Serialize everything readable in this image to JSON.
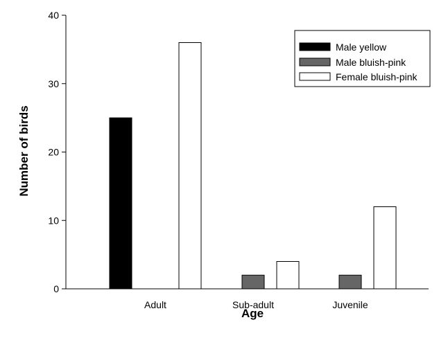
{
  "chart_data": {
    "type": "bar",
    "xlabel": "Age",
    "ylabel": "Number of birds",
    "categories": [
      "Adult",
      "Sub-adult",
      "Juvenile"
    ],
    "ylim": [
      0,
      40
    ],
    "yticks": [
      0,
      10,
      20,
      30,
      40
    ],
    "grid": false,
    "legend_position": "top-right",
    "series": [
      {
        "name": "Male yellow",
        "values": [
          25,
          0,
          0
        ],
        "color": "#000000"
      },
      {
        "name": "Male bluish-pink",
        "values": [
          0,
          2,
          2
        ],
        "color": "#666666"
      },
      {
        "name": "Female bluish-pink",
        "values": [
          36,
          4,
          12
        ],
        "color": "#ffffff"
      }
    ]
  }
}
